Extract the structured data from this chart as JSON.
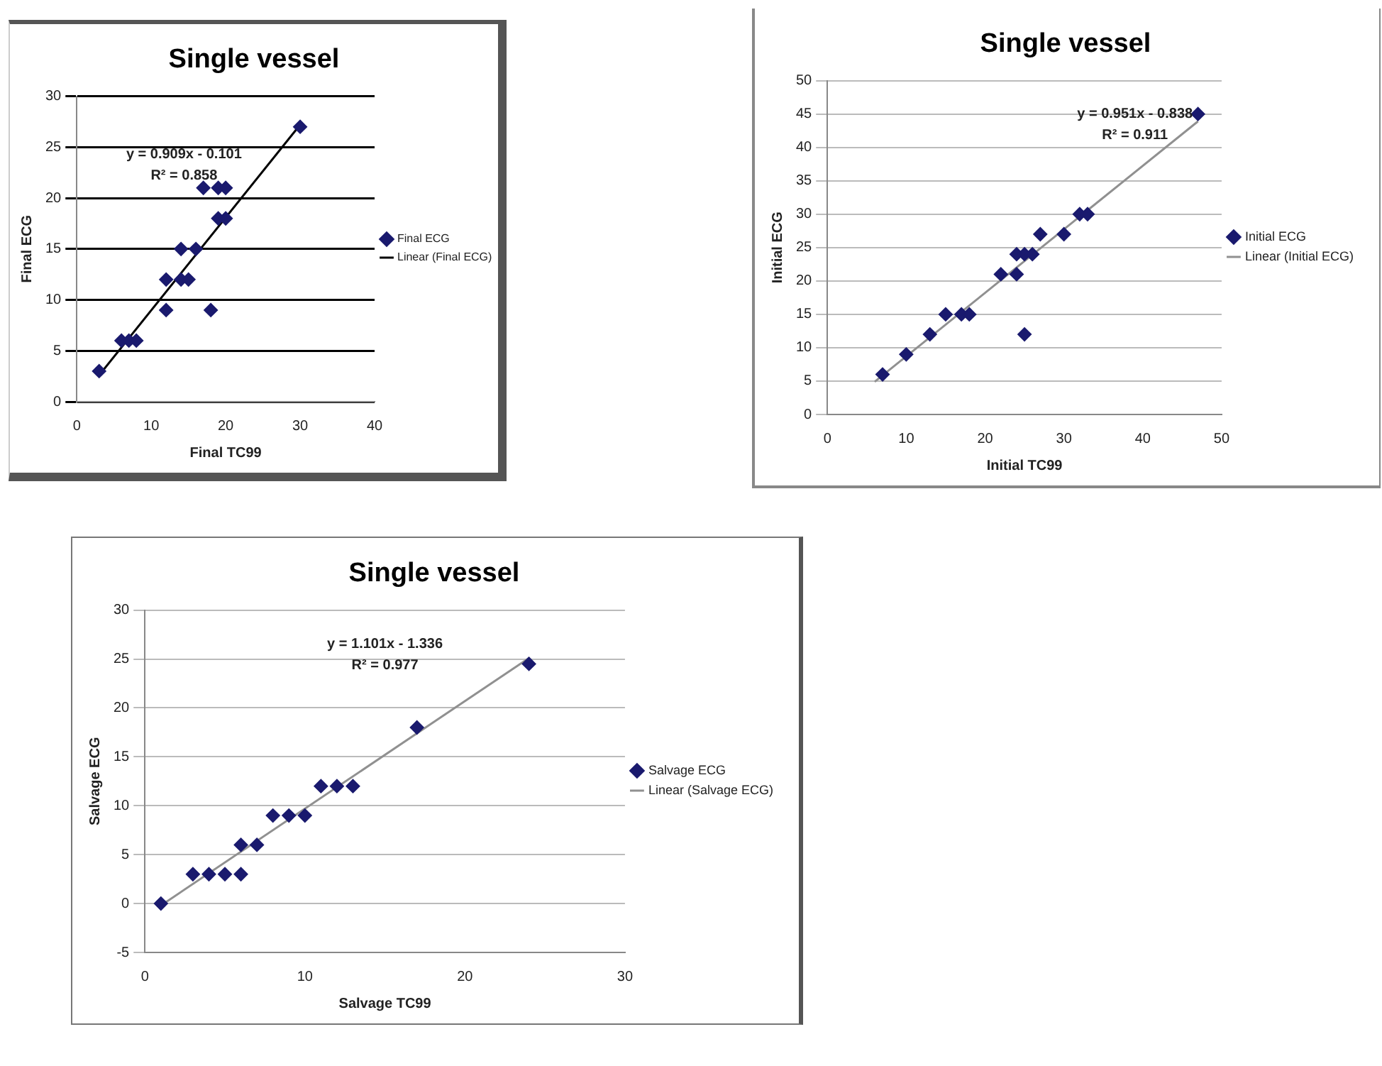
{
  "chart_data": [
    {
      "type": "scatter",
      "title": "Single vessel",
      "xlabel": "Final TC99",
      "ylabel": "Final ECG",
      "xlim": [
        0,
        40
      ],
      "xticks": [
        0,
        10,
        20,
        30,
        40
      ],
      "ylim": [
        0,
        30
      ],
      "yticks": [
        0,
        5,
        10,
        15,
        20,
        25,
        30
      ],
      "grid": "y",
      "legend": "right",
      "marker": "diamond",
      "series": [
        {
          "name": "Final ECG",
          "color": "#1a1a6e",
          "x": [
            3,
            6,
            7,
            8,
            12,
            12,
            14,
            14,
            15,
            16,
            17,
            18,
            19,
            19,
            20,
            20,
            30
          ],
          "values": [
            3,
            6,
            6,
            6,
            9,
            12,
            15,
            12,
            12,
            15,
            21,
            9,
            18,
            21,
            18,
            21,
            27
          ]
        },
        {
          "name": "Linear (Final ECG)",
          "type": "line",
          "marker": "none",
          "color": "#000000",
          "x": [
            3,
            30
          ],
          "values": [
            2.6,
            27.2
          ]
        }
      ],
      "annotations": [
        "y = 0.909x - 0.101",
        "R² = 0.858"
      ]
    },
    {
      "type": "scatter",
      "title": "Single vessel",
      "xlabel": "Initial TC99",
      "ylabel": "Initial ECG",
      "xlim": [
        0,
        50
      ],
      "xticks": [
        0,
        10,
        20,
        30,
        40,
        50
      ],
      "ylim": [
        0,
        50
      ],
      "yticks": [
        0,
        5,
        10,
        15,
        20,
        25,
        30,
        35,
        40,
        45,
        50
      ],
      "grid": "y",
      "legend": "right",
      "marker": "diamond",
      "series": [
        {
          "name": "Initial ECG",
          "color": "#1a1a6e",
          "x": [
            7,
            10,
            13,
            15,
            17,
            18,
            22,
            24,
            24,
            25,
            26,
            25,
            27,
            30,
            32,
            33,
            47
          ],
          "values": [
            6,
            9,
            12,
            15,
            15,
            15,
            21,
            21,
            24,
            24,
            24,
            12,
            27,
            27,
            30,
            30,
            45
          ]
        },
        {
          "name": "Linear (Initial ECG)",
          "type": "line",
          "marker": "none",
          "color": "#909090",
          "x": [
            6,
            47
          ],
          "values": [
            4.9,
            43.9
          ]
        }
      ],
      "annotations": [
        "y = 0.951x - 0.838",
        "R² = 0.911"
      ]
    },
    {
      "type": "scatter",
      "title": "Single vessel",
      "xlabel": "Salvage TC99",
      "ylabel": "Salvage ECG",
      "xlim": [
        0,
        30
      ],
      "xticks": [
        0,
        10,
        20,
        30
      ],
      "ylim": [
        -5,
        30
      ],
      "yticks": [
        -5,
        0,
        5,
        10,
        15,
        20,
        25,
        30
      ],
      "grid": "y",
      "legend": "right",
      "marker": "diamond",
      "series": [
        {
          "name": "Salvage ECG",
          "color": "#1a1a6e",
          "x": [
            1,
            3,
            4,
            5,
            6,
            6,
            7,
            8,
            9,
            10,
            11,
            12,
            13,
            17,
            24
          ],
          "values": [
            0,
            3,
            3,
            3,
            3,
            6,
            6,
            9,
            9,
            9,
            12,
            12,
            12,
            18,
            24.5
          ]
        },
        {
          "name": "Linear (Salvage ECG)",
          "type": "line",
          "marker": "none",
          "color": "#909090",
          "x": [
            1,
            24
          ],
          "values": [
            -0.2,
            25.1
          ]
        }
      ],
      "annotations": [
        "y = 1.101x - 1.336",
        "R² = 0.977"
      ]
    }
  ]
}
